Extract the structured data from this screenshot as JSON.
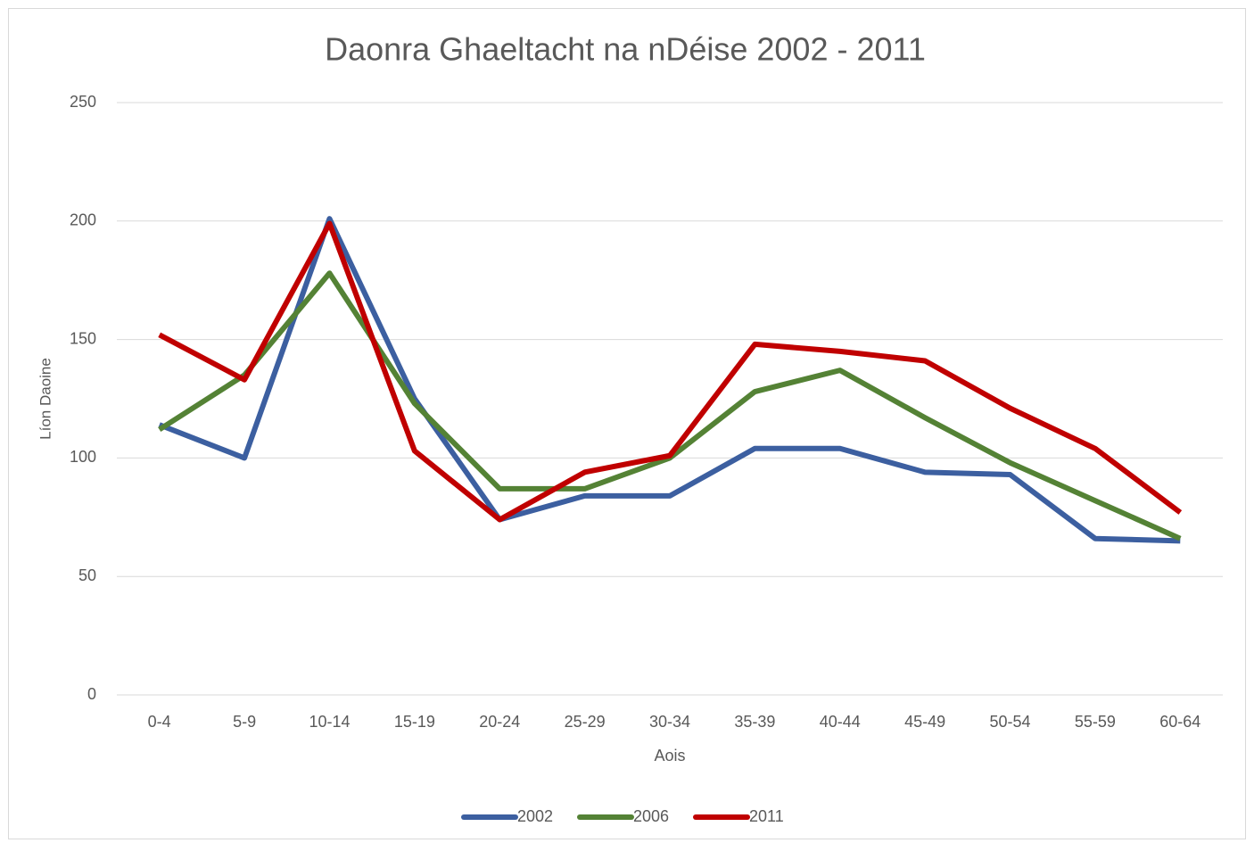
{
  "chart_data": {
    "type": "line",
    "title": "Daonra Ghaeltacht na nDéise 2002 - 2011",
    "x_label": "Aois",
    "y_label": "Líon Daoine",
    "categories": [
      "0-4",
      "5-9",
      "10-14",
      "15-19",
      "20-24",
      "25-29",
      "30-34",
      "35-39",
      "40-44",
      "45-49",
      "50-54",
      "55-59",
      "60-64"
    ],
    "series": [
      {
        "name": "2002",
        "color": "#3c5fa0",
        "values": [
          114,
          100,
          201,
          125,
          74,
          84,
          84,
          104,
          104,
          94,
          93,
          66,
          65
        ]
      },
      {
        "name": "2006",
        "color": "#548235",
        "values": [
          112,
          135,
          178,
          123,
          87,
          87,
          100,
          128,
          137,
          117,
          98,
          82,
          66
        ]
      },
      {
        "name": "2011",
        "color": "#c00000",
        "values": [
          152,
          133,
          199,
          103,
          74,
          94,
          101,
          148,
          145,
          141,
          121,
          104,
          77
        ]
      }
    ],
    "ylim": [
      0,
      250
    ],
    "yticks": [
      0,
      50,
      100,
      150,
      200,
      250
    ],
    "grid": true,
    "legend": "bottom"
  }
}
